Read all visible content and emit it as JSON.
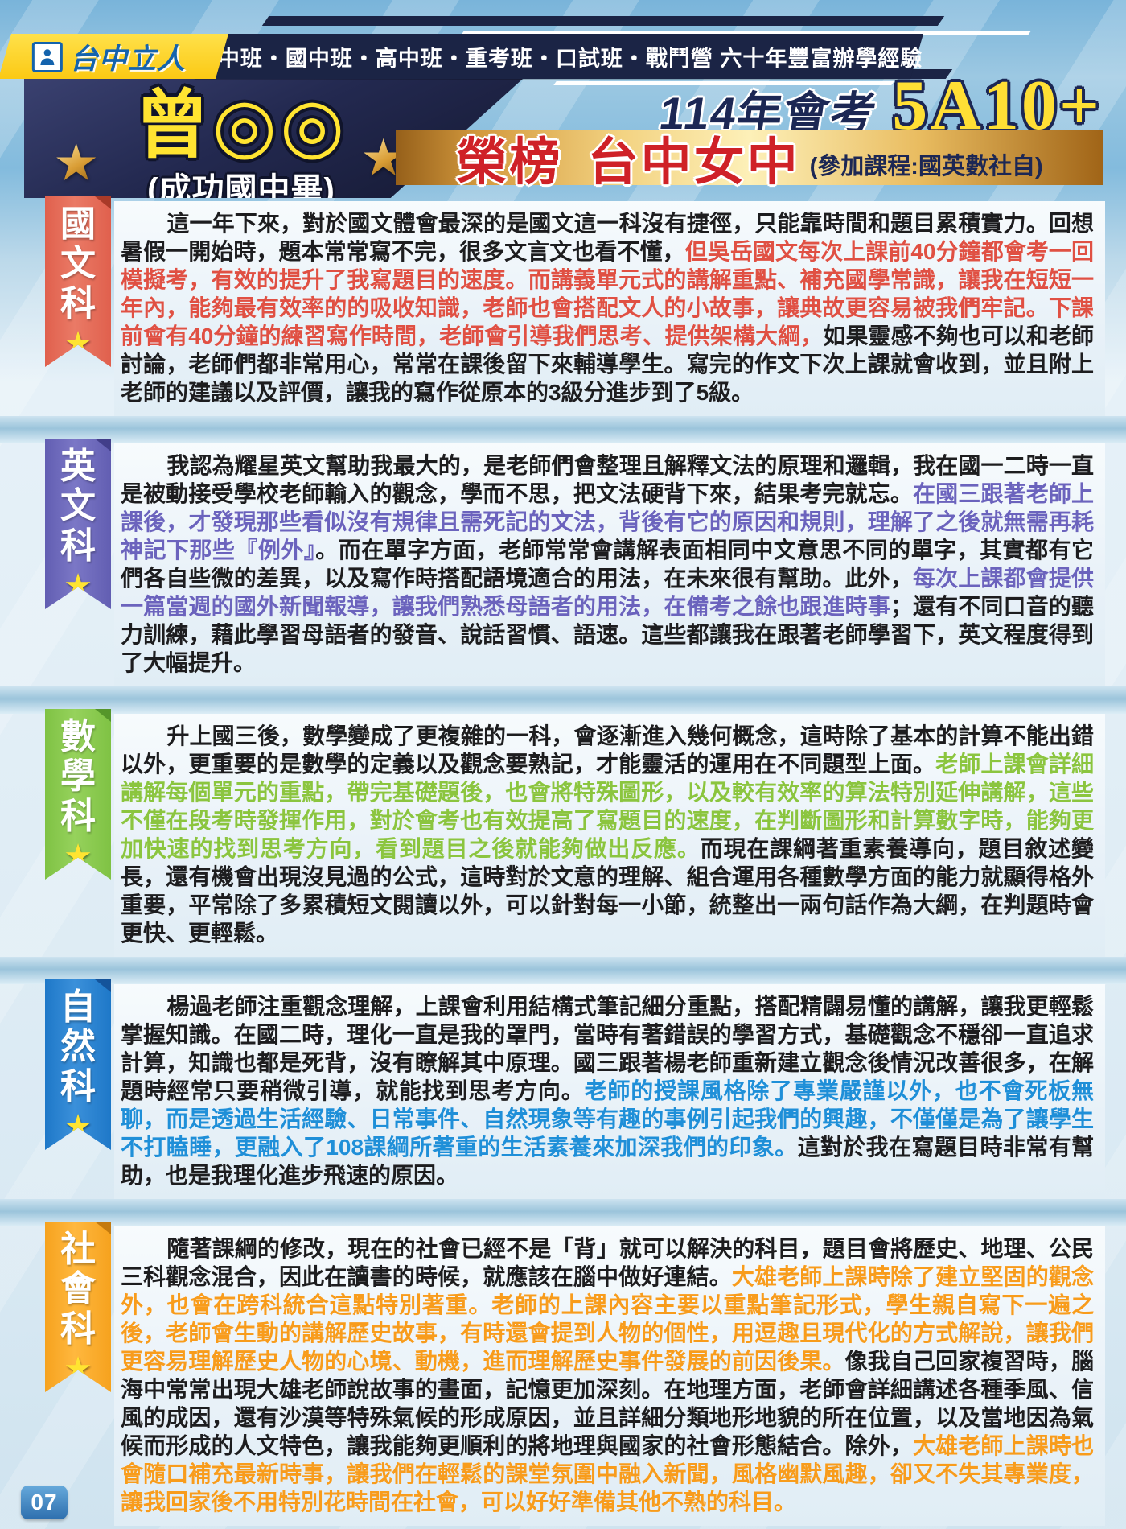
{
  "top_banner": {
    "brand": "台中立人",
    "programs": "私中班・國中班・高中班・重考班・口試班・戰鬥營 六十年豐富辦學經驗"
  },
  "header": {
    "student_name": "曾◎◎",
    "student_school": "(成功國中畢)",
    "exam_title": "114年會考",
    "exam_score": "5A10+",
    "honor_prefix": "榮榜",
    "honor_school": "台中女中",
    "courses_note": "(參加課程:國英數社自)"
  },
  "icons": {
    "star": "★"
  },
  "page_number": "07",
  "colors": {
    "banner_navy": "#1b2445",
    "brand_yellow": "#fbc914",
    "brand_blue": "#1463ad",
    "honor_red": "#cf2127",
    "score_yellow": "#ffdf35",
    "body_text": "#1d1d1f"
  },
  "sections": [
    {
      "id": "chinese",
      "subject": "國文科",
      "subject_chars": [
        "國",
        "文",
        "科"
      ],
      "ribbon_color": "#e0604d",
      "ribbon_light": "#ea7a66",
      "ribbon_dark": "#a93a28",
      "accent_color": "#e05043",
      "segments": [
        {
          "color": "default",
          "text": "這一年下來，對於國文體會最深的是國文這一科沒有捷徑，只能靠時間和題目累積實力。回想暑假一開始時，題本常常寫不完，很多文言文也看不懂，"
        },
        {
          "color": "accent",
          "text": "但吳岳國文每次上課前40分鐘都會考一回模擬考，有效的提升了我寫題目的速度。而講義單元式的講解重點、補充國學常識，讓我在短短一年內，能夠最有效率的的吸收知識，老師也會搭配文人的小故事，讓典故更容易被我們牢記。下課前會有40分鐘的練習寫作時間，老師會引導我們思考、提供架構大綱，"
        },
        {
          "color": "default",
          "text": "如果靈感不夠也可以和老師討論，老師們都非常用心，常常在課後留下來輔導學生。寫完的作文下次上課就會收到，並且附上老師的建議以及評價，讓我的寫作從原本的3級分進步到了5級。"
        }
      ]
    },
    {
      "id": "english",
      "subject": "英文科",
      "subject_chars": [
        "英",
        "文",
        "科"
      ],
      "ribbon_color": "#625eb2",
      "ribbon_light": "#7b77c6",
      "ribbon_dark": "#423e8a",
      "accent_color": "#6b63bd",
      "segments": [
        {
          "color": "default",
          "text": "我認為耀星英文幫助我最大的，是老師們會整理且解釋文法的原理和邏輯，我在國一二時一直是被動接受學校老師輸入的觀念，學而不思，把文法硬背下來，結果考完就忘。"
        },
        {
          "color": "accent",
          "text": "在國三跟著老師上課後，才發現那些看似沒有規律且需死記的文法，背後有它的原因和規則，理解了之後就無需再耗神記下那些『例外』"
        },
        {
          "color": "default",
          "text": "。而在單字方面，老師常常會講解表面相同中文意思不同的單字，其實都有它們各自些微的差異，以及寫作時搭配語境適合的用法，在未來很有幫助。此外，"
        },
        {
          "color": "accent",
          "text": "每次上課都會提供一篇當週的國外新聞報導，讓我們熟悉母語者的用法，在備考之餘也跟進時事"
        },
        {
          "color": "default",
          "text": "；還有不同口音的聽力訓練，藉此學習母語者的發音、說話習慣、語速。這些都讓我在跟著老師學習下，英文程度得到了大幅提升。"
        }
      ]
    },
    {
      "id": "math",
      "subject": "數學科",
      "subject_chars": [
        "數",
        "學",
        "科"
      ],
      "ribbon_color": "#7fc244",
      "ribbon_light": "#96d25c",
      "ribbon_dark": "#55962a",
      "accent_color": "#8bc53f",
      "segments": [
        {
          "color": "default",
          "text": "升上國三後，數學變成了更複雜的一科，會逐漸進入幾何概念，這時除了基本的計算不能出錯以外，更重要的是數學的定義以及觀念要熟記，才能靈活的運用在不同題型上面。"
        },
        {
          "color": "accent",
          "text": "老師上課會詳細講解每個單元的重點，帶完基礎題後，也會將特殊圖形，以及較有效率的算法特別延伸講解，這些不僅在段考時發揮作用，對於會考也有效提高了寫題目的速度，在判斷圖形和計算數字時，能夠更加快速的找到思考方向，看到題目之後就能夠做出反應。"
        },
        {
          "color": "default",
          "text": "而現在課綱著重素養導向，題目敘述變長，還有機會出現沒見過的公式，這時對於文意的理解、組合運用各種數學方面的能力就顯得格外重要，平常除了多累積短文閱讀以外，可以針對每一小節，統整出一兩句話作為大綱，在判題時會更快、更輕鬆。"
        }
      ]
    },
    {
      "id": "science",
      "subject": "自然科",
      "subject_chars": [
        "自",
        "然",
        "科"
      ],
      "ribbon_color": "#1e78c8",
      "ribbon_light": "#3b90da",
      "ribbon_dark": "#14549b",
      "accent_color": "#1f8fd8",
      "segments": [
        {
          "color": "default",
          "text": "楊過老師注重觀念理解，上課會利用結構式筆記細分重點，搭配精闢易懂的講解，讓我更輕鬆掌握知識。在國二時，理化一直是我的罩門，當時有著錯誤的學習方式，基礎觀念不穩卻一直追求計算，知識也都是死背，沒有瞭解其中原理。國三跟著楊老師重新建立觀念後情況改善很多，在解題時經常只要稍微引導，就能找到思考方向。"
        },
        {
          "color": "accent",
          "text": "老師的授課風格除了專業嚴謹以外，也不會死板無聊，而是透過生活經驗、日常事件、自然現象等有趣的事例引起我們的興趣，不僅僅是為了讓學生不打瞌睡，更融入了108課綱所著重的生活素養來加深我們的印象。"
        },
        {
          "color": "default",
          "text": "這對於我在寫題目時非常有幫助，也是我理化進步飛速的原因。"
        }
      ]
    },
    {
      "id": "social",
      "subject": "社會科",
      "subject_chars": [
        "社",
        "會",
        "科"
      ],
      "ribbon_color": "#f6a21e",
      "ribbon_light": "#ffb83f",
      "ribbon_dark": "#c47a0e",
      "accent_color": "#f89c1c",
      "segments": [
        {
          "color": "default",
          "text": "隨著課綱的修改，現在的社會已經不是「背」就可以解決的科目，題目會將歷史、地理、公民三科觀念混合，因此在讀書的時候，就應該在腦中做好連結。"
        },
        {
          "color": "accent",
          "text": "大雄老師上課時除了建立堅固的觀念外，也會在跨科統合這點特別著重。老師的上課內容主要以重點筆記形式，學生親自寫下一遍之後，老師會生動的講解歷史故事，有時還會提到人物的個性，用逗趣且現代化的方式解說，讓我們更容易理解歷史人物的心境、動機，進而理解歷史事件發展的前因後果。"
        },
        {
          "color": "default",
          "text": "像我自己回家複習時，腦海中常常出現大雄老師說故事的畫面，記憶更加深刻。在地理方面，老師會詳細講述各種季風、信風的成因，還有沙漠等特殊氣候的形成原因，並且詳細分類地形地貌的所在位置，以及當地因為氣候而形成的人文特色，讓我能夠更順利的將地理與國家的社會形態結合。除外，"
        },
        {
          "color": "accent",
          "text": "大雄老師上課時也會隨口補充最新時事，讓我們在輕鬆的課堂氛圍中融入新聞，風格幽默風趣，卻又不失其專業度，讓我回家後不用特別花時間在社會，可以好好準備其他不熟的科目。"
        }
      ]
    }
  ]
}
